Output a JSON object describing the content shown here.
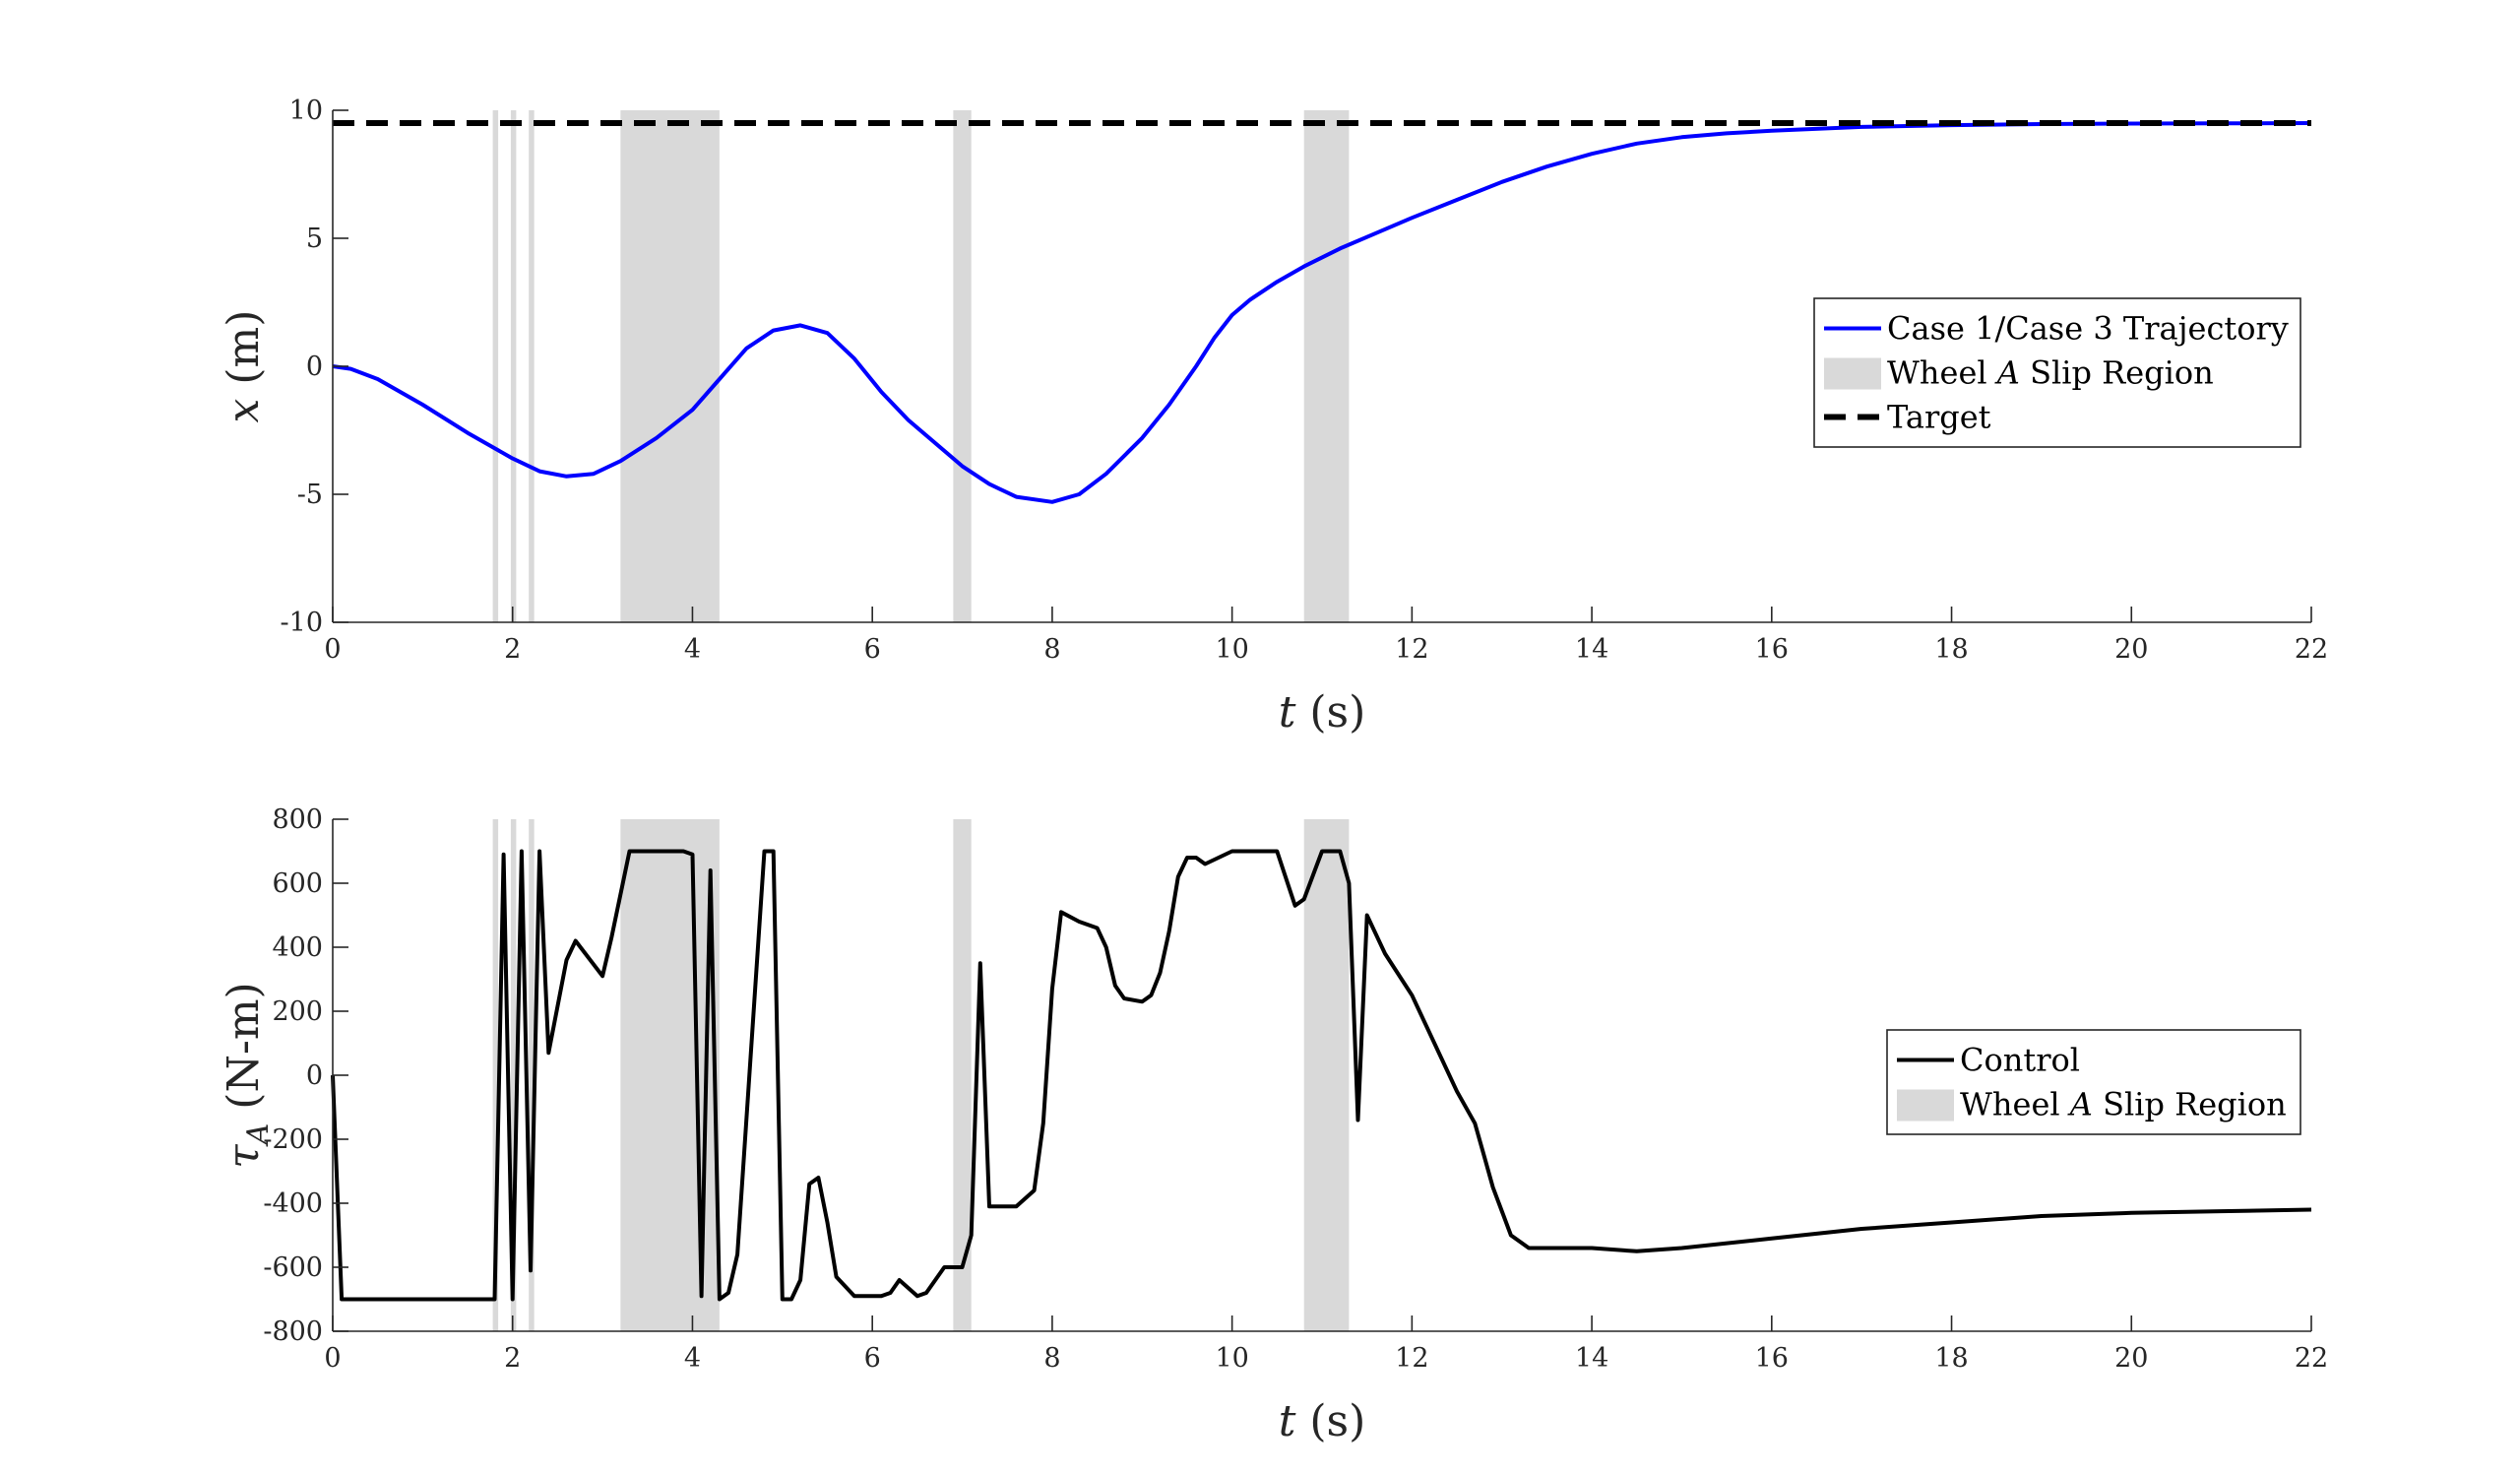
{
  "chart_data": [
    {
      "type": "line",
      "xlabel": "t (s)",
      "ylabel": "x (m)",
      "xlim": [
        0,
        22
      ],
      "ylim": [
        -10,
        10
      ],
      "xticks": [
        0,
        2,
        4,
        6,
        8,
        10,
        12,
        14,
        16,
        18,
        20,
        22
      ],
      "yticks": [
        -10,
        -5,
        0,
        5,
        10
      ],
      "xtick_labels": [
        "0",
        "2",
        "4",
        "6",
        "8",
        "10",
        "12",
        "14",
        "16",
        "18",
        "20",
        "22"
      ],
      "ytick_labels": [
        "-10",
        "-5",
        "0",
        "5",
        "10"
      ],
      "slip_regions": [
        [
          1.78,
          1.84
        ],
        [
          1.98,
          2.04
        ],
        [
          2.18,
          2.24
        ],
        [
          3.2,
          4.3
        ],
        [
          6.9,
          7.1
        ],
        [
          10.8,
          11.3
        ]
      ],
      "series": [
        {
          "name": "Case 1/Case 3 Trajectory",
          "color": "#0000ff",
          "x": [
            0,
            0.2,
            0.5,
            1.0,
            1.5,
            2.0,
            2.3,
            2.6,
            2.9,
            3.2,
            3.6,
            4.0,
            4.3,
            4.6,
            4.9,
            5.2,
            5.5,
            5.8,
            6.1,
            6.4,
            6.7,
            7.0,
            7.3,
            7.6,
            8.0,
            8.3,
            8.6,
            9.0,
            9.3,
            9.6,
            9.8,
            10.0,
            10.2,
            10.5,
            10.8,
            11.2,
            11.6,
            12.0,
            12.5,
            13.0,
            13.5,
            14.0,
            14.5,
            15.0,
            15.5,
            16.0,
            17.0,
            18.0,
            19.0,
            20.0,
            21.0,
            22.0
          ],
          "y": [
            0.0,
            -0.1,
            -0.5,
            -1.5,
            -2.6,
            -3.6,
            -4.1,
            -4.3,
            -4.2,
            -3.7,
            -2.8,
            -1.7,
            -0.5,
            0.7,
            1.4,
            1.6,
            1.3,
            0.3,
            -1.0,
            -2.1,
            -3.0,
            -3.9,
            -4.6,
            -5.1,
            -5.3,
            -5.0,
            -4.2,
            -2.8,
            -1.5,
            0.0,
            1.1,
            2.0,
            2.6,
            3.3,
            3.9,
            4.6,
            5.2,
            5.8,
            6.5,
            7.2,
            7.8,
            8.3,
            8.7,
            8.95,
            9.1,
            9.2,
            9.35,
            9.42,
            9.46,
            9.48,
            9.49,
            9.5
          ]
        },
        {
          "name": "Target",
          "color": "#000000",
          "style": "dashed",
          "x": [
            0,
            22
          ],
          "y": [
            9.5,
            9.5
          ]
        }
      ],
      "legend": {
        "position": "right",
        "entries": [
          {
            "label": "Case 1/Case 3 Trajectory",
            "kind": "line",
            "color": "#0000ff"
          },
          {
            "label": "Wheel A Slip Region",
            "kind": "patch",
            "color": "#d9d9d9"
          },
          {
            "label": "Target",
            "kind": "dashed",
            "color": "#000000"
          }
        ]
      },
      "grid": false
    },
    {
      "type": "line",
      "xlabel": "t (s)",
      "ylabel": "τA (N-m)",
      "xlim": [
        0,
        22
      ],
      "ylim": [
        -800,
        800
      ],
      "xticks": [
        0,
        2,
        4,
        6,
        8,
        10,
        12,
        14,
        16,
        18,
        20,
        22
      ],
      "yticks": [
        -800,
        -600,
        -400,
        -200,
        0,
        200,
        400,
        600,
        800
      ],
      "xtick_labels": [
        "0",
        "2",
        "4",
        "6",
        "8",
        "10",
        "12",
        "14",
        "16",
        "18",
        "20",
        "22"
      ],
      "ytick_labels": [
        "-800",
        "-600",
        "-400",
        "-200",
        "0",
        "200",
        "400",
        "600",
        "800"
      ],
      "slip_regions": [
        [
          1.78,
          1.84
        ],
        [
          1.98,
          2.04
        ],
        [
          2.18,
          2.24
        ],
        [
          3.2,
          4.3
        ],
        [
          6.9,
          7.1
        ],
        [
          10.8,
          11.3
        ]
      ],
      "series": [
        {
          "name": "Control",
          "color": "#000000",
          "x": [
            0,
            0.1,
            1.8,
            1.9,
            2.0,
            2.1,
            2.2,
            2.3,
            2.4,
            2.6,
            2.7,
            3.0,
            3.1,
            3.3,
            3.9,
            4.0,
            4.1,
            4.2,
            4.3,
            4.4,
            4.5,
            4.8,
            4.9,
            5.0,
            5.1,
            5.2,
            5.3,
            5.4,
            5.5,
            5.6,
            5.8,
            6.0,
            6.1,
            6.2,
            6.3,
            6.5,
            6.6,
            6.8,
            6.9,
            7.0,
            7.1,
            7.2,
            7.3,
            7.4,
            7.6,
            7.8,
            7.9,
            8.0,
            8.1,
            8.3,
            8.5,
            8.6,
            8.7,
            8.8,
            9.0,
            9.1,
            9.2,
            9.3,
            9.4,
            9.5,
            9.6,
            9.7,
            10.0,
            10.2,
            10.5,
            10.7,
            10.8,
            11.0,
            11.2,
            11.3,
            11.4,
            11.5,
            11.7,
            12.0,
            12.5,
            12.7,
            12.8,
            12.9,
            13.1,
            13.3,
            14.0,
            14.5,
            15.0,
            16.0,
            17.0,
            18.0,
            19.0,
            20.0,
            21.0,
            22.0
          ],
          "y": [
            0,
            -700,
            -700,
            690,
            -700,
            700,
            -610,
            700,
            70,
            360,
            420,
            310,
            430,
            700,
            700,
            690,
            -690,
            640,
            -700,
            -680,
            -560,
            700,
            700,
            -700,
            -700,
            -640,
            -340,
            -320,
            -460,
            -630,
            -690,
            -690,
            -690,
            -680,
            -640,
            -690,
            -680,
            -600,
            -600,
            -600,
            -500,
            350,
            -410,
            -410,
            -410,
            -360,
            -150,
            270,
            510,
            480,
            460,
            400,
            280,
            240,
            230,
            250,
            320,
            450,
            620,
            680,
            680,
            660,
            700,
            700,
            700,
            530,
            550,
            700,
            700,
            600,
            -140,
            500,
            380,
            250,
            -50,
            -150,
            -250,
            -350,
            -500,
            -540,
            -540,
            -550,
            -540,
            -510,
            -480,
            -460,
            -440,
            -430,
            -425,
            -420
          ]
        }
      ],
      "legend": {
        "position": "right",
        "entries": [
          {
            "label": "Control",
            "kind": "line",
            "color": "#000000"
          },
          {
            "label": "Wheel A Slip Region",
            "kind": "patch",
            "color": "#d9d9d9"
          }
        ]
      },
      "grid": false
    }
  ]
}
